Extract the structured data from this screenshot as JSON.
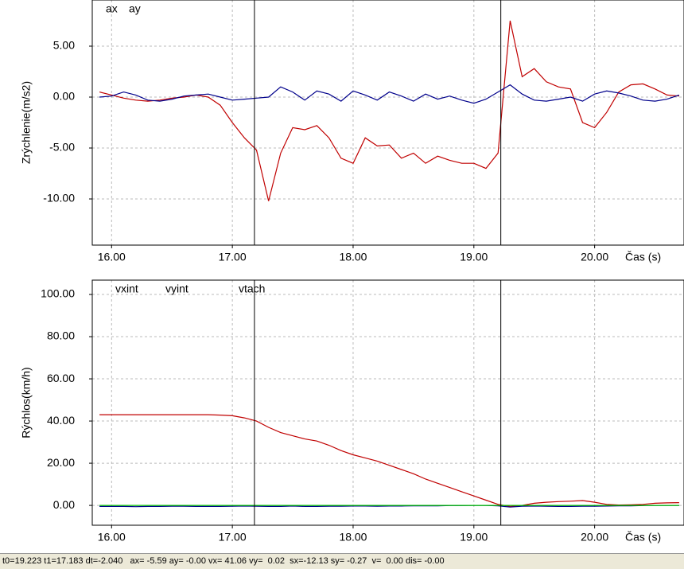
{
  "chart_data": [
    {
      "type": "line",
      "xlabel": "Čas (s)",
      "ylabel": "Zrýchlenie(m/s2)",
      "x": [
        15.9,
        16.0,
        16.1,
        16.2,
        16.3,
        16.4,
        16.5,
        16.6,
        16.7,
        16.8,
        16.9,
        17.0,
        17.1,
        17.2,
        17.3,
        17.4,
        17.5,
        17.6,
        17.7,
        17.8,
        17.9,
        18.0,
        18.1,
        18.2,
        18.3,
        18.4,
        18.5,
        18.6,
        18.7,
        18.8,
        18.9,
        19.0,
        19.1,
        19.2,
        19.3,
        19.4,
        19.5,
        19.6,
        19.7,
        19.8,
        19.9,
        20.0,
        20.1,
        20.2,
        20.3,
        20.4,
        20.5,
        20.6,
        20.7
      ],
      "series": [
        {
          "name": "ax",
          "color": "#c00000",
          "values": [
            0.5,
            0.2,
            -0.1,
            -0.3,
            -0.4,
            -0.3,
            -0.1,
            0.0,
            0.2,
            0.0,
            -0.8,
            -2.5,
            -4.0,
            -5.2,
            -10.2,
            -5.5,
            -3.0,
            -3.2,
            -2.8,
            -4.0,
            -6.0,
            -6.5,
            -4.0,
            -4.8,
            -4.7,
            -6.0,
            -5.5,
            -6.5,
            -5.8,
            -6.2,
            -6.5,
            -6.5,
            -7.0,
            -5.5,
            7.5,
            2.0,
            2.8,
            1.5,
            1.0,
            0.8,
            -2.5,
            -3.0,
            -1.5,
            0.5,
            1.2,
            1.3,
            0.8,
            0.2,
            0.1
          ]
        },
        {
          "name": "ay",
          "color": "#00008b",
          "values": [
            0.0,
            0.1,
            0.5,
            0.2,
            -0.3,
            -0.4,
            -0.2,
            0.1,
            0.2,
            0.3,
            0.0,
            -0.3,
            -0.2,
            -0.1,
            0.0,
            1.0,
            0.5,
            -0.3,
            0.6,
            0.3,
            -0.4,
            0.6,
            0.2,
            -0.3,
            0.5,
            0.1,
            -0.4,
            0.3,
            -0.2,
            0.1,
            -0.3,
            -0.6,
            -0.2,
            0.5,
            1.2,
            0.3,
            -0.3,
            -0.4,
            -0.2,
            0.0,
            -0.4,
            0.3,
            0.6,
            0.4,
            0.1,
            -0.3,
            -0.4,
            -0.2,
            0.2
          ]
        }
      ],
      "xlim": [
        15.84,
        20.74
      ],
      "ylim": [
        -14.53,
        9.53
      ],
      "xticks": [
        {
          "value": 16,
          "label": "16.00"
        },
        {
          "value": 17,
          "label": "17.00"
        },
        {
          "value": 18,
          "label": "18.00"
        },
        {
          "value": 19,
          "label": "19.00"
        },
        {
          "value": 20,
          "label": "20.00"
        }
      ],
      "yticks": [
        {
          "value": 5,
          "label": "5.00"
        },
        {
          "value": 0,
          "label": "0.00"
        },
        {
          "value": -5,
          "label": "-5.00"
        },
        {
          "value": -10,
          "label": "-10.00"
        }
      ],
      "cursors": [
        17.183,
        19.223
      ],
      "grid": true
    },
    {
      "type": "line",
      "xlabel": "Čas (s)",
      "ylabel": "Rýchlos(km/h)",
      "x": [
        15.9,
        16.0,
        16.1,
        16.2,
        16.3,
        16.4,
        16.5,
        16.6,
        16.7,
        16.8,
        16.9,
        17.0,
        17.1,
        17.2,
        17.3,
        17.4,
        17.5,
        17.6,
        17.7,
        17.8,
        17.9,
        18.0,
        18.1,
        18.2,
        18.3,
        18.4,
        18.5,
        18.6,
        18.7,
        18.8,
        18.9,
        19.0,
        19.1,
        19.2,
        19.3,
        19.4,
        19.5,
        19.6,
        19.7,
        19.8,
        19.9,
        20.0,
        20.1,
        20.2,
        20.3,
        20.4,
        20.5,
        20.6,
        20.7
      ],
      "series": [
        {
          "name": "vxint",
          "color": "#c00000",
          "values": [
            43,
            43,
            43,
            43,
            43,
            43,
            43,
            43,
            43,
            43,
            42.8,
            42.5,
            41.5,
            40,
            37,
            34.5,
            33,
            31.5,
            30.5,
            28.5,
            26,
            24,
            22.5,
            21,
            19,
            17,
            15,
            12.5,
            10.5,
            8.5,
            6.5,
            4.5,
            2.5,
            0.5,
            -0.5,
            0.0,
            1.0,
            1.5,
            1.8,
            2.0,
            2.3,
            1.5,
            0.5,
            0.2,
            0.3,
            0.5,
            1.0,
            1.2,
            1.3
          ]
        },
        {
          "name": "vyint",
          "color": "#00008b",
          "values": [
            -0.5,
            -0.5,
            -0.5,
            -0.6,
            -0.5,
            -0.5,
            -0.4,
            -0.4,
            -0.5,
            -0.5,
            -0.5,
            -0.4,
            -0.3,
            -0.4,
            -0.5,
            -0.5,
            -0.3,
            -0.5,
            -0.5,
            -0.4,
            -0.4,
            -0.3,
            -0.3,
            -0.4,
            -0.3,
            -0.3,
            -0.2,
            -0.2,
            -0.2,
            -0.1,
            -0.1,
            0.0,
            0.0,
            -0.2,
            -0.8,
            -0.4,
            -0.3,
            -0.4,
            -0.5,
            -0.5,
            -0.4,
            -0.4,
            -0.3,
            -0.2,
            -0.2,
            -0.1,
            0.0,
            0.0,
            0.0
          ]
        },
        {
          "name": "vtach",
          "color": "#00c000",
          "values": [
            0,
            0,
            0,
            0,
            0,
            0,
            0,
            0,
            0,
            0,
            0,
            0,
            0,
            0,
            0,
            0,
            0,
            0,
            0,
            0,
            0,
            0,
            0,
            0,
            0,
            0,
            0,
            0,
            0,
            0,
            0,
            0,
            0,
            0,
            0,
            0,
            0,
            0,
            0,
            0,
            0,
            0,
            0,
            0,
            0,
            0,
            0,
            0,
            0
          ]
        }
      ],
      "xlim": [
        15.84,
        20.74
      ],
      "ylim": [
        -9.4,
        106.8
      ],
      "xticks": [
        {
          "value": 16,
          "label": "16.00"
        },
        {
          "value": 17,
          "label": "17.00"
        },
        {
          "value": 18,
          "label": "18.00"
        },
        {
          "value": 19,
          "label": "19.00"
        },
        {
          "value": 20,
          "label": "20.00"
        }
      ],
      "yticks": [
        {
          "value": 100,
          "label": "100.00"
        },
        {
          "value": 80,
          "label": "80.00"
        },
        {
          "value": 60,
          "label": "60.00"
        },
        {
          "value": 40,
          "label": "40.00"
        },
        {
          "value": 20,
          "label": "20.00"
        },
        {
          "value": 0,
          "label": "0.00"
        }
      ],
      "cursors": [
        17.183,
        19.223
      ],
      "grid": true
    }
  ],
  "status_bar": "t0=19.223 t1=17.183 dt=-2.040   ax= -5.59 ay= -0.00 vx= 41.06 vy=  0.02  sx=-12.13 sy= -0.27  v=  0.00 dis= -0.00"
}
